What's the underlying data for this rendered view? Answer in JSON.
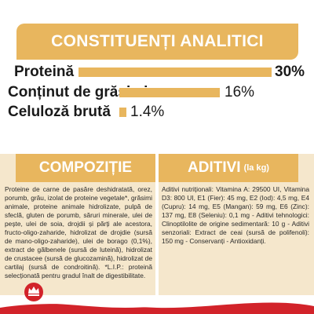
{
  "title": "CONSTITUENȚI ANALITICI",
  "nutrients": [
    {
      "label": "Proteină",
      "value": "30%",
      "fraction": 1.0
    },
    {
      "label": "Conținut de grăsimi",
      "value": "16%",
      "fraction": 0.53
    },
    {
      "label": "Celuloză brută",
      "value": "1.4%",
      "fraction": 0.05
    }
  ],
  "composition": {
    "heading": "COMPOZIȚIE",
    "text": "Proteine de carne de pasăre deshidratată, orez, porumb, grâu, izolat de proteine vegetale*, grăsimi animale, proteine animale hidrolizate, pulpă de sfeclă, gluten de porumb, săruri minerale, ulei de pește, ulei de soia, drojdii și părți ale acestora, fructo-oligo-zaharide, hidrolizat de drojdie (sursă de mano-oligo-zaharide), ulei de borago (0,1%), extract de gălbenele (sursă de luteină), hidrolizat de crustacee (sursă de glucozamină), hidrolizat de cartilaj (sursă de condroitină). *L.I.P.: proteină selecționată pentru gradul înalt de digestibilitate."
  },
  "additives": {
    "heading": "ADITIVI",
    "unit": "(la kg)",
    "text": "Aditivi nutriționali: Vitamina A: 29500 UI, Vitamina D3: 800 UI, E1 (Fier): 45 mg, E2 (Iod): 4,5 mg, E4 (Cupru): 14 mg, E5 (Mangan): 59 mg, E6 (Zinc): 137 mg, E8 (Seleniu): 0,1 mg - Aditivi tehnologici: Clinoptilolite de origine sedimentară: 10 g - Aditivi senzoriali: Extract de ceai (sursă de polifenoli): 150 mg - Conservanți - Antioxidanți."
  },
  "colors": {
    "accent": "#e8b65e",
    "panel": "#f5e7cc",
    "brand_red": "#d2232a"
  },
  "icons": {
    "logo": "royal-crown-logo-icon"
  }
}
